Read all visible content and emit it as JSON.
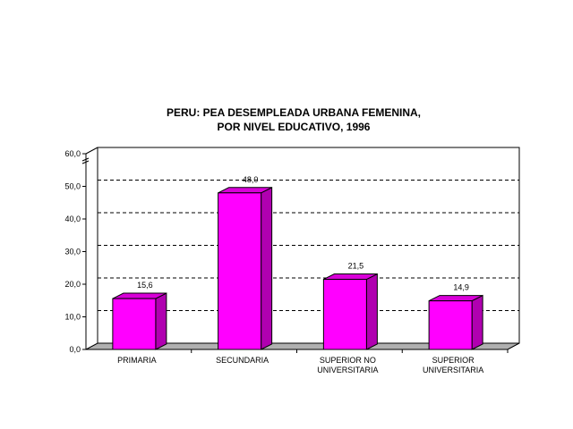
{
  "chart_data": {
    "type": "bar",
    "title_line1": "PERU: PEA DESEMPLEADA URBANA FEMENINA,",
    "title_line2": "POR NIVEL EDUCATIVO, 1996",
    "categories": [
      [
        "PRIMARIA"
      ],
      [
        "SECUNDARIA"
      ],
      [
        "SUPERIOR NO",
        "UNIVERSITARIA"
      ],
      [
        "SUPERIOR",
        "UNIVERSITARIA"
      ]
    ],
    "values": [
      15.6,
      48.0,
      21.5,
      14.9
    ],
    "data_labels": [
      "15,6",
      "48,0",
      "21,5",
      "14,9"
    ],
    "ylim": [
      0,
      60
    ],
    "yticks": [
      0,
      10,
      20,
      30,
      40,
      50,
      60
    ],
    "ytick_labels": [
      "0,0",
      "10,0",
      "20,0",
      "30,0",
      "40,0",
      "50,0",
      "60,0"
    ],
    "grid": true,
    "bar_color": "#ff00ff",
    "bar_side_color": "#b000b0",
    "bar_top_color": "#d800d8",
    "floor_color": "#b0b0b0",
    "xlabel": "",
    "ylabel": ""
  }
}
